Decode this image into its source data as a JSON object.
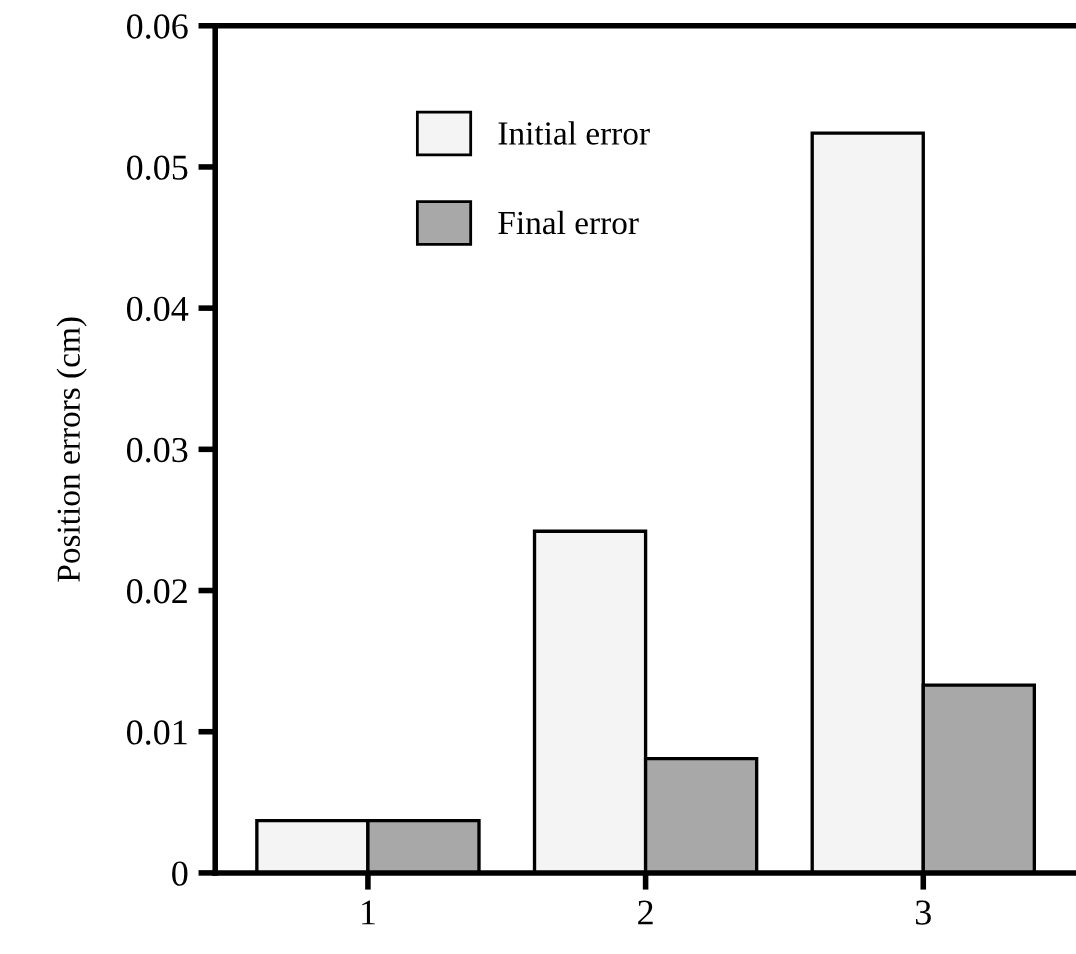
{
  "chart_data": {
    "type": "bar",
    "ylabel": "Position errors (cm)",
    "categories": [
      "1",
      "2",
      "3"
    ],
    "series": [
      {
        "name": "Initial error",
        "color": "#f4f4f4",
        "values": [
          0.0037,
          0.0242,
          0.0524
        ]
      },
      {
        "name": "Final error",
        "color": "#a8a8a8",
        "values": [
          0.0037,
          0.0081,
          0.0133
        ]
      }
    ],
    "ylim": [
      0,
      0.06
    ],
    "yticks": [
      0,
      0.01,
      0.02,
      0.03,
      0.04,
      0.05,
      0.06
    ],
    "grid": false,
    "legend": "top left"
  }
}
